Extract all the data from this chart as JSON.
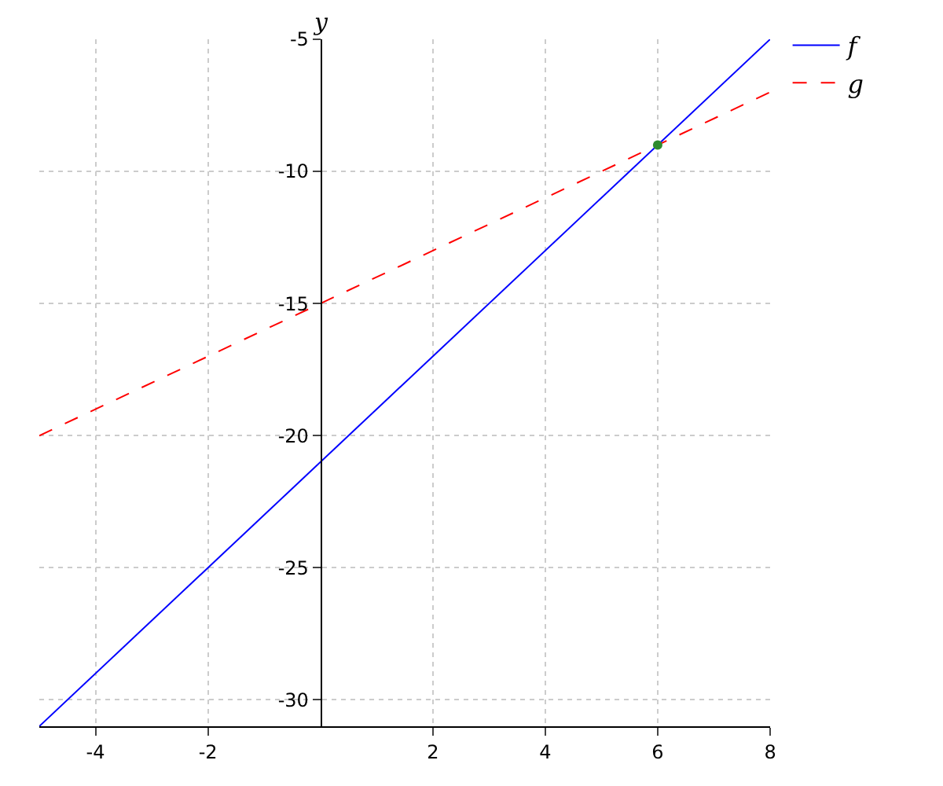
{
  "chart_data": {
    "type": "line",
    "ylabel": "y",
    "series": [
      {
        "name": "f",
        "color": "#0000ff",
        "x": [
          -5,
          8
        ],
        "values": [
          -31,
          -5
        ],
        "line_style": "solid"
      },
      {
        "name": "g",
        "color": "#ff0000",
        "x": [
          -5,
          8
        ],
        "values": [
          -20,
          -7
        ],
        "line_style": "dashed"
      },
      {
        "type": "scatter",
        "color": "#2e8b2e",
        "x": [
          6
        ],
        "values": [
          -9
        ],
        "marker": "circle"
      }
    ],
    "xlim": [
      -5,
      8
    ],
    "ylim": [
      -31,
      -5
    ],
    "xticks": [
      -4,
      -2,
      2,
      4,
      6,
      8
    ],
    "yticks": [
      -30,
      -25,
      -20,
      -15,
      -10,
      -5
    ],
    "grid": true,
    "legend": "top right"
  }
}
